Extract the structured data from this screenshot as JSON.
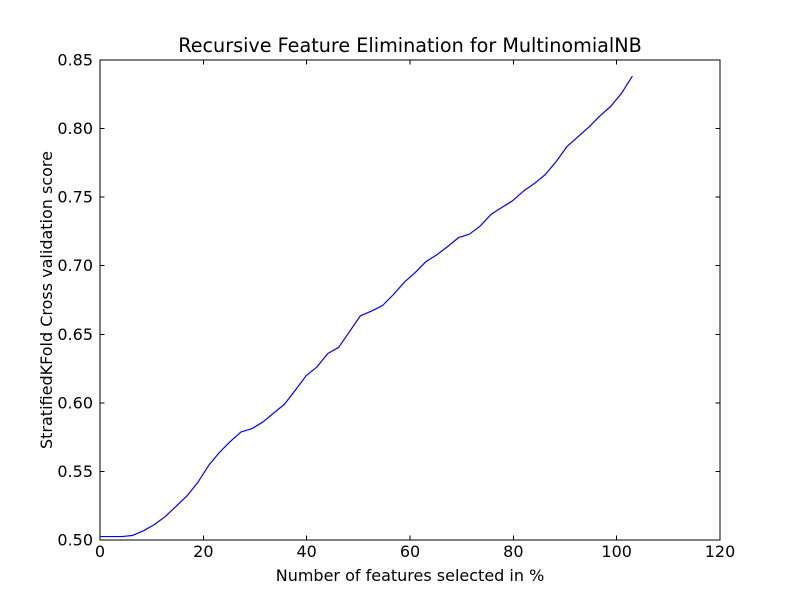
{
  "figure": {
    "background": "#ffffff",
    "frame_color": "#000000"
  },
  "chart_data": {
    "type": "line",
    "title": "Recursive Feature Elimination for MultinomialNB",
    "xlabel": "Number of features selected in %",
    "ylabel": "StratifiedKFold Cross validation score",
    "xlim": [
      0,
      120
    ],
    "ylim": [
      0.5,
      0.85
    ],
    "x_ticks": [
      0,
      20,
      40,
      60,
      80,
      100,
      120
    ],
    "x_tick_labels": [
      "0",
      "20",
      "40",
      "60",
      "80",
      "100",
      "120"
    ],
    "y_ticks": [
      0.5,
      0.55,
      0.6,
      0.65,
      0.7,
      0.75,
      0.8,
      0.85
    ],
    "y_tick_labels": [
      "0.50",
      "0.55",
      "0.60",
      "0.65",
      "0.70",
      "0.75",
      "0.80",
      "0.85"
    ],
    "grid": false,
    "legend": "none",
    "line_color": "#0000ff",
    "series": [
      {
        "name": "StratifiedKFold cross-validation score",
        "x": [
          0,
          2.1,
          4.2,
          6.3,
          8.4,
          10.5,
          12.6,
          14.7,
          16.8,
          18.9,
          21.0,
          23.1,
          25.2,
          27.3,
          29.4,
          31.5,
          33.6,
          35.7,
          37.8,
          39.9,
          42.0,
          44.1,
          46.2,
          48.3,
          50.4,
          52.6,
          54.7,
          56.8,
          58.9,
          61.0,
          63.1,
          65.2,
          67.3,
          69.4,
          71.5,
          73.6,
          75.7,
          77.8,
          79.9,
          82.0,
          84.1,
          86.2,
          88.3,
          90.4,
          92.5,
          94.6,
          96.7,
          98.8,
          100.9,
          103.0
        ],
        "y": [
          0.5025,
          0.5025,
          0.5025,
          0.5033,
          0.5067,
          0.5112,
          0.517,
          0.5245,
          0.532,
          0.5418,
          0.5542,
          0.5638,
          0.5718,
          0.5788,
          0.5812,
          0.586,
          0.5925,
          0.599,
          0.6092,
          0.6198,
          0.6262,
          0.636,
          0.6405,
          0.652,
          0.6635,
          0.667,
          0.671,
          0.679,
          0.688,
          0.695,
          0.703,
          0.708,
          0.714,
          0.7205,
          0.723,
          0.729,
          0.7375,
          0.7425,
          0.7475,
          0.7545,
          0.76,
          0.7665,
          0.776,
          0.787,
          0.794,
          0.801,
          0.809,
          0.816,
          0.8255,
          0.838
        ]
      }
    ]
  }
}
